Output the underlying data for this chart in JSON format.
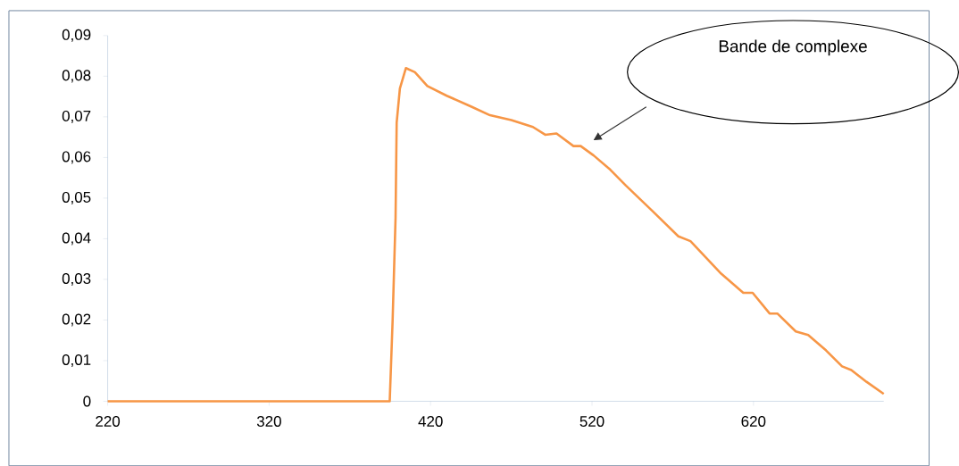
{
  "chart_data": {
    "type": "line",
    "x": [
      220,
      300,
      394.7,
      396.5,
      398.3,
      399,
      401,
      404.7,
      410.3,
      418,
      430,
      445.3,
      456.8,
      470,
      483.4,
      491,
      498,
      508.5,
      513,
      521,
      531.3,
      541,
      557,
      573.5,
      581,
      600,
      613.7,
      619.5,
      630,
      634.8,
      646.2,
      653.9,
      665,
      674.9,
      680.6,
      690,
      700.7
    ],
    "series": [
      {
        "color": "#f79646",
        "values": [
          0,
          0,
          0,
          0.02,
          0.045,
          0.0686,
          0.077,
          0.082,
          0.081,
          0.0776,
          0.0752,
          0.0725,
          0.0704,
          0.0692,
          0.0675,
          0.0656,
          0.0659,
          0.0628,
          0.0628,
          0.0605,
          0.057,
          0.0531,
          0.047,
          0.0406,
          0.0394,
          0.0314,
          0.0267,
          0.0267,
          0.0216,
          0.0216,
          0.0172,
          0.0163,
          0.0125,
          0.0086,
          0.0077,
          0.0048,
          0.0018
        ]
      }
    ],
    "xlim": [
      220,
      700.7
    ],
    "ylim": [
      0,
      0.09
    ],
    "xticks": [
      220,
      320,
      420,
      520,
      620
    ],
    "yticks": [
      0,
      {
        "value": 0.01,
        "label": "0,01"
      },
      {
        "value": 0.02,
        "label": "0,02"
      },
      {
        "value": 0.03,
        "label": "0,03"
      },
      {
        "value": 0.04,
        "label": "0,04"
      },
      {
        "value": 0.05,
        "label": "0,05"
      },
      {
        "value": 0.06,
        "label": "0,06"
      },
      {
        "value": 0.07,
        "label": "0,07"
      },
      {
        "value": 0.08,
        "label": "0,08"
      },
      {
        "value": 0.09,
        "label": "0,09"
      }
    ],
    "annotations": [
      "Bande de complexe"
    ],
    "grid": false,
    "marker": "none",
    "line_style": "solid"
  }
}
